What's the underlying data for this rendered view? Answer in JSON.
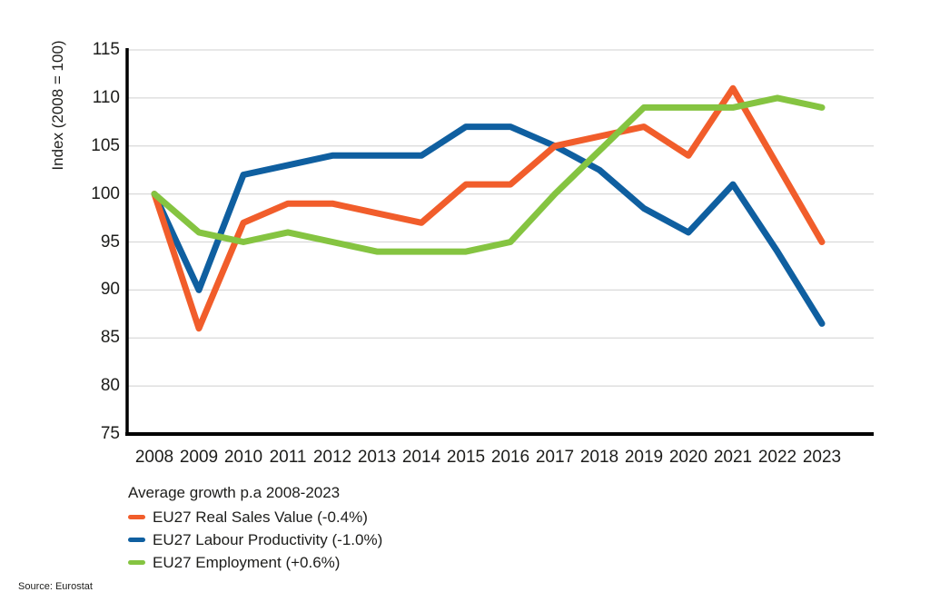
{
  "chart": {
    "y_axis_title": "Index (2008 = 100)",
    "source": "Source: Eurostat"
  },
  "chart_data": {
    "type": "line",
    "title": "",
    "legend_title": "Average growth p.a 2008-2023",
    "legend_position": "below",
    "grid": true,
    "x": [
      "2008",
      "2009",
      "2010",
      "2011",
      "2012",
      "2013",
      "2014",
      "2015",
      "2016",
      "2017",
      "2018",
      "2019",
      "2020",
      "2021",
      "2022",
      "2023"
    ],
    "ylim": [
      75,
      115
    ],
    "ytick_step": 5,
    "ylabel": "Index (2008 = 100)",
    "axis_color": "#000000",
    "gridline_color": "#d9d9d9",
    "series": [
      {
        "name": "EU27 Real Sales Value (-0.4%)",
        "color": "#F15D2B",
        "values": [
          100,
          86,
          97,
          99,
          99,
          98,
          97,
          101,
          101,
          105,
          106,
          107,
          104,
          111,
          103,
          95
        ]
      },
      {
        "name": "EU27 Labour Productivity (-1.0%)",
        "color": "#0F5FA0",
        "values": [
          100,
          90,
          102,
          103,
          104,
          104,
          104,
          107,
          107,
          105,
          102.5,
          98.5,
          96,
          101,
          94,
          86.5
        ]
      },
      {
        "name": "EU27 Employment (+0.6%)",
        "color": "#85C441",
        "values": [
          100,
          96,
          95,
          96,
          95,
          94,
          94,
          94,
          95,
          100,
          104.5,
          109,
          109,
          109,
          110,
          109
        ]
      }
    ]
  }
}
